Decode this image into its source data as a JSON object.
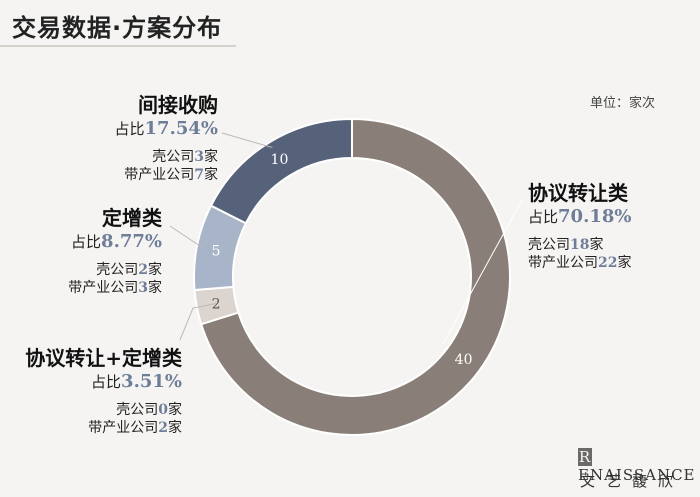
{
  "title": "交易数据·方案分布",
  "unit": "单位：家次",
  "share_prefix": "占比",
  "shell_label": "壳公司",
  "industry_label": "带产业公司",
  "count_suffix": "家",
  "brand": {
    "mark": "ENAISSANCE",
    "mark_initial": "R",
    "chinese": "文艺馥欣"
  },
  "chart_data": {
    "type": "pie",
    "donut": true,
    "slices": [
      {
        "label": "协议转让类",
        "value": 40,
        "share": "70.18%",
        "shell": 18,
        "industry": 22,
        "color": "#8a7f78"
      },
      {
        "label": "协议转让+定增类",
        "value": 2,
        "share": "3.51%",
        "shell": 0,
        "industry": 2,
        "color": "#dcd4ce"
      },
      {
        "label": "定增类",
        "value": 5,
        "share": "8.77%",
        "shell": 2,
        "industry": 3,
        "color": "#a8b5c8"
      },
      {
        "label": "间接收购",
        "value": 10,
        "share": "17.54%",
        "shell": 3,
        "industry": 7,
        "color": "#56627a"
      }
    ]
  }
}
